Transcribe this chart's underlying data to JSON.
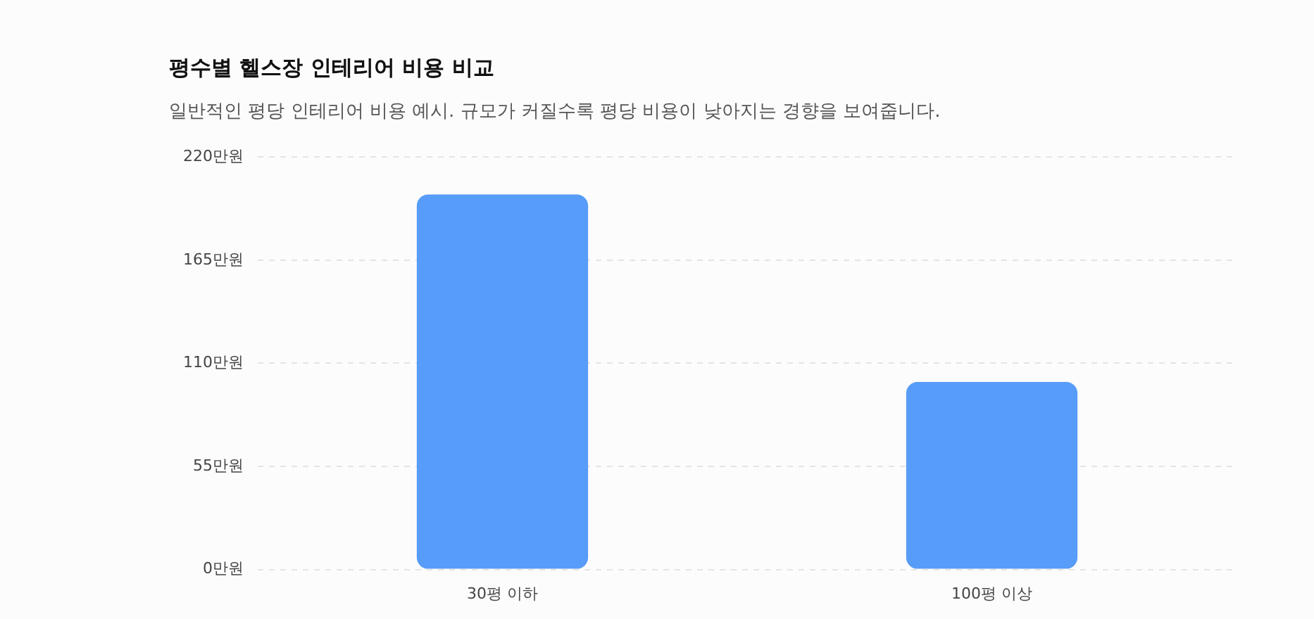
{
  "chart_data": {
    "type": "bar",
    "title": "평수별 헬스장 인테리어 비용 비교",
    "subtitle": "일반적인 평당 인테리어 비용 예시. 규모가 커질수록 평당 비용이 낮아지는 경향을 보여줍니다.",
    "categories": [
      "30평 이하",
      "100평 이상"
    ],
    "values": [
      200,
      100
    ],
    "color": "#579cf8",
    "ylim": [
      0,
      220
    ],
    "yticks": [
      {
        "value": 0,
        "label": "0만원"
      },
      {
        "value": 55,
        "label": "55만원"
      },
      {
        "value": 110,
        "label": "110만원"
      },
      {
        "value": 165,
        "label": "165만원"
      },
      {
        "value": 220,
        "label": "220만원"
      }
    ],
    "grid": "y"
  }
}
